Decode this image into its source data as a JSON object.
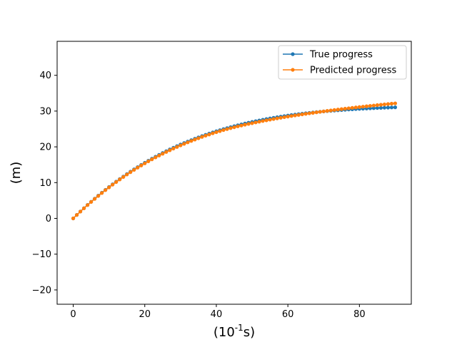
{
  "chart_data": {
    "type": "line",
    "title": "",
    "xlabel": "(10^-1 s)",
    "xlabel_main": "(10",
    "xlabel_sup": "-1",
    "xlabel_tail": "s)",
    "ylabel": "(m)",
    "xlim": [
      -4.5,
      94.5
    ],
    "ylim": [
      -24,
      49.5
    ],
    "xticks": [
      0,
      20,
      40,
      60,
      80
    ],
    "yticks": [
      -20,
      -10,
      0,
      10,
      20,
      30,
      40
    ],
    "grid": false,
    "legend_position": "upper right",
    "colors": {
      "true": "#1f77b4",
      "predicted": "#ff7f0e"
    },
    "series": [
      {
        "name": "True progress",
        "x": [
          0,
          1,
          2,
          3,
          4,
          5,
          6,
          7,
          8,
          9,
          10,
          11,
          12,
          13,
          14,
          15,
          16,
          17,
          18,
          19,
          20,
          21,
          22,
          23,
          24,
          25,
          26,
          27,
          28,
          29,
          30,
          31,
          32,
          33,
          34,
          35,
          36,
          37,
          38,
          39,
          40,
          41,
          42,
          43,
          44,
          45,
          46,
          47,
          48,
          49,
          50,
          51,
          52,
          53,
          54,
          55,
          56,
          57,
          58,
          59,
          60,
          61,
          62,
          63,
          64,
          65,
          66,
          67,
          68,
          69,
          70,
          71,
          72,
          73,
          74,
          75,
          76,
          77,
          78,
          79,
          80,
          81,
          82,
          83,
          84,
          85,
          86,
          87,
          88,
          89,
          90
        ],
        "values": [
          0,
          0.97,
          1.92,
          2.85,
          3.76,
          4.64,
          5.51,
          6.35,
          7.17,
          7.98,
          8.76,
          9.52,
          10.26,
          10.99,
          11.69,
          12.38,
          13.05,
          13.7,
          14.33,
          14.94,
          15.54,
          16.12,
          16.69,
          17.24,
          17.77,
          18.28,
          18.78,
          19.27,
          19.74,
          20.2,
          20.64,
          21.07,
          21.48,
          21.88,
          22.27,
          22.65,
          23.01,
          23.36,
          23.7,
          24.03,
          24.35,
          24.66,
          24.95,
          25.24,
          25.51,
          25.78,
          26.03,
          26.28,
          26.52,
          26.74,
          26.96,
          27.17,
          27.38,
          27.57,
          27.76,
          27.94,
          28.11,
          28.28,
          28.44,
          28.59,
          28.74,
          28.88,
          29.01,
          29.14,
          29.26,
          29.38,
          29.49,
          29.6,
          29.7,
          29.8,
          29.9,
          29.99,
          30.07,
          30.15,
          30.23,
          30.3,
          30.37,
          30.44,
          30.5,
          30.56,
          30.62,
          30.67,
          30.72,
          30.77,
          30.82,
          30.86,
          30.9,
          30.94,
          30.98,
          31.01,
          31.05
        ]
      },
      {
        "name": "Predicted progress",
        "x": [
          0,
          1,
          2,
          3,
          4,
          5,
          6,
          7,
          8,
          9,
          10,
          11,
          12,
          13,
          14,
          15,
          16,
          17,
          18,
          19,
          20,
          21,
          22,
          23,
          24,
          25,
          26,
          27,
          28,
          29,
          30,
          31,
          32,
          33,
          34,
          35,
          36,
          37,
          38,
          39,
          40,
          41,
          42,
          43,
          44,
          45,
          46,
          47,
          48,
          49,
          50,
          51,
          52,
          53,
          54,
          55,
          56,
          57,
          58,
          59,
          60,
          61,
          62,
          63,
          64,
          65,
          66,
          67,
          68,
          69,
          70,
          71,
          72,
          73,
          74,
          75,
          76,
          77,
          78,
          79,
          80,
          81,
          82,
          83,
          84,
          85,
          86,
          87,
          88,
          89,
          90
        ],
        "values": [
          0,
          0.96,
          1.9,
          2.82,
          3.72,
          4.59,
          5.45,
          6.28,
          7.1,
          7.9,
          8.67,
          9.43,
          10.16,
          10.88,
          11.58,
          12.26,
          12.92,
          13.56,
          14.19,
          14.79,
          15.38,
          15.96,
          16.51,
          17.05,
          17.57,
          18.08,
          18.57,
          19.05,
          19.52,
          19.97,
          20.41,
          20.84,
          21.25,
          21.65,
          22.04,
          22.41,
          22.78,
          23.13,
          23.46,
          23.79,
          24.1,
          24.4,
          24.69,
          24.96,
          25.23,
          25.48,
          25.73,
          25.96,
          26.19,
          26.41,
          26.62,
          26.83,
          27.03,
          27.23,
          27.42,
          27.6,
          27.78,
          27.96,
          28.13,
          28.3,
          28.46,
          28.62,
          28.78,
          28.93,
          29.08,
          29.23,
          29.37,
          29.51,
          29.65,
          29.79,
          29.92,
          30.05,
          30.18,
          30.31,
          30.43,
          30.55,
          30.67,
          30.79,
          30.91,
          31.02,
          31.13,
          31.24,
          31.35,
          31.46,
          31.56,
          31.67,
          31.77,
          31.87,
          31.97,
          32.07,
          32.16
        ]
      }
    ]
  }
}
